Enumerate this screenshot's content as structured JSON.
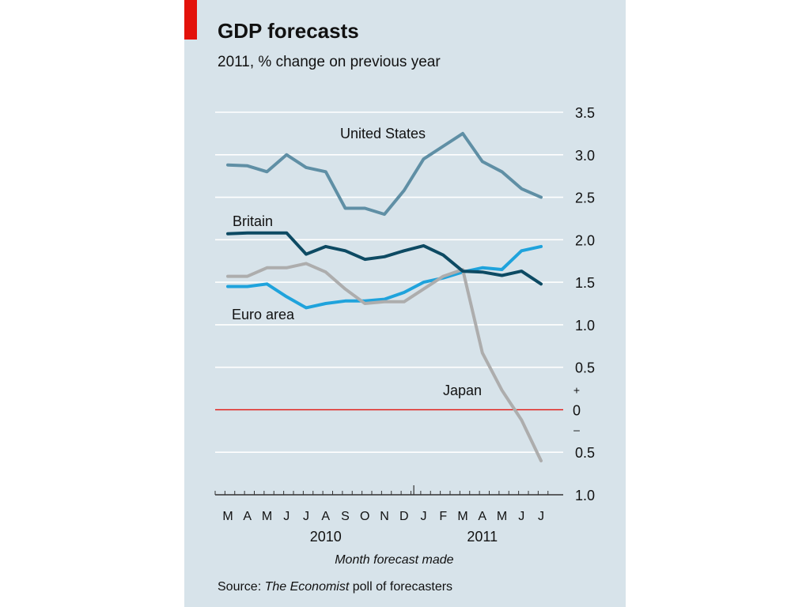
{
  "colors": {
    "panel": "#d7e3ea",
    "accent": "#e3120b",
    "grid": "#ffffff",
    "zero_line": "#e3120b",
    "text": "#111111"
  },
  "chart_data": {
    "type": "line",
    "title": "GDP forecasts",
    "subtitle": "2011, % change on previous year",
    "xlabel": "Month forecast made",
    "x_ticks": [
      "M",
      "A",
      "M",
      "J",
      "J",
      "A",
      "S",
      "O",
      "N",
      "D",
      "J",
      "F",
      "M",
      "A",
      "M",
      "J",
      "J"
    ],
    "year_labels": [
      {
        "label": "2010",
        "month_index": 5
      },
      {
        "label": "2011",
        "month_index": 13
      }
    ],
    "ylim": [
      -1.0,
      3.5
    ],
    "y_ticks": [
      {
        "value": 3.5,
        "label": "3.5"
      },
      {
        "value": 3.0,
        "label": "3.0"
      },
      {
        "value": 2.5,
        "label": "2.5"
      },
      {
        "value": 2.0,
        "label": "2.0"
      },
      {
        "value": 1.5,
        "label": "1.5"
      },
      {
        "value": 1.0,
        "label": "1.0"
      },
      {
        "value": 0.5,
        "label": "0.5"
      },
      {
        "value": 0.0,
        "label": "0"
      },
      {
        "value": -0.5,
        "label": "0.5"
      },
      {
        "value": -1.0,
        "label": "1.0"
      }
    ],
    "sign_labels": {
      "plus": "+",
      "minus": "–"
    },
    "grid": true,
    "series": [
      {
        "name": "United States",
        "color": "#5f8fa5",
        "x": [
          0,
          1,
          2,
          3,
          4,
          5,
          6,
          7,
          8,
          9,
          10,
          11,
          12,
          13,
          14,
          15,
          16
        ],
        "values": [
          2.88,
          2.87,
          2.8,
          3.0,
          2.85,
          2.8,
          2.37,
          2.37,
          2.3,
          2.58,
          2.95,
          3.1,
          3.25,
          2.92,
          2.8,
          2.6,
          2.5
        ]
      },
      {
        "name": "Britain",
        "color": "#0d4a63",
        "x": [
          0,
          1,
          2,
          3,
          4,
          5,
          6,
          7,
          8,
          9,
          10,
          11,
          12,
          13,
          14,
          15,
          16
        ],
        "values": [
          2.07,
          2.08,
          2.08,
          2.08,
          1.83,
          1.92,
          1.87,
          1.77,
          1.8,
          1.87,
          1.93,
          1.82,
          1.63,
          1.62,
          1.58,
          1.63,
          1.48
        ]
      },
      {
        "name": "Euro area",
        "color": "#1fa3dc",
        "x": [
          0,
          1,
          2,
          3,
          4,
          5,
          6,
          7,
          8,
          9,
          10,
          11,
          12,
          13,
          14,
          15,
          16
        ],
        "values": [
          1.45,
          1.45,
          1.48,
          1.33,
          1.2,
          1.25,
          1.28,
          1.28,
          1.3,
          1.38,
          1.5,
          1.55,
          1.62,
          1.67,
          1.65,
          1.87,
          1.92
        ]
      },
      {
        "name": "Japan",
        "color": "#adadad",
        "x": [
          0,
          1,
          2,
          3,
          4,
          5,
          6,
          7,
          8,
          9,
          10,
          11,
          12,
          13,
          14,
          15,
          16
        ],
        "values": [
          1.57,
          1.57,
          1.67,
          1.67,
          1.72,
          1.62,
          1.42,
          1.25,
          1.27,
          1.27,
          1.42,
          1.57,
          1.65,
          0.67,
          0.23,
          -0.12,
          -0.6
        ]
      }
    ],
    "source_prefix": "Source: ",
    "source_italic": "The Economist",
    "source_suffix": " poll of forecasters"
  }
}
